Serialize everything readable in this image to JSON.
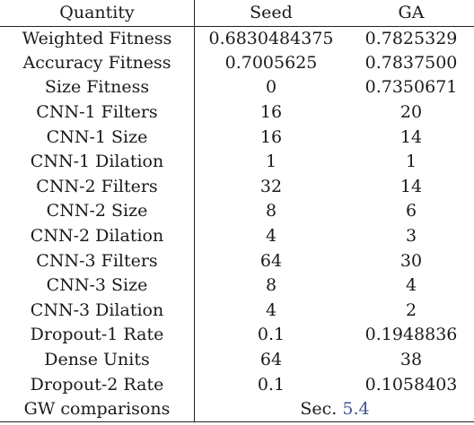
{
  "table": {
    "headers": [
      "Quantity",
      "Seed",
      "GA"
    ],
    "rows": [
      [
        "Weighted Fitness",
        "0.6830484375",
        "0.7825329"
      ],
      [
        "Accuracy Fitness",
        "0.7005625",
        "0.7837500"
      ],
      [
        "Size Fitness",
        "0",
        "0.7350671"
      ],
      [
        "CNN-1 Filters",
        "16",
        "20"
      ],
      [
        "CNN-1 Size",
        "16",
        "14"
      ],
      [
        "CNN-1 Dilation",
        "1",
        "1"
      ],
      [
        "CNN-2 Filters",
        "32",
        "14"
      ],
      [
        "CNN-2 Size",
        "8",
        "6"
      ],
      [
        "CNN-2 Dilation",
        "4",
        "3"
      ],
      [
        "CNN-3 Filters",
        "64",
        "30"
      ],
      [
        "CNN-3 Size",
        "8",
        "4"
      ],
      [
        "CNN-3 Dilation",
        "4",
        "2"
      ],
      [
        "Dropout-1 Rate",
        "0.1",
        "0.1948836"
      ],
      [
        "Dense Units",
        "64",
        "38"
      ],
      [
        "Dropout-2 Rate",
        "0.1",
        "0.1058403"
      ]
    ],
    "footer": {
      "label": "GW comparisons",
      "text": "Sec.",
      "ref": "5.4"
    }
  },
  "colors": {
    "text": "#1a1a1a",
    "rule": "#222222",
    "reference_link": "#3d5a96"
  }
}
